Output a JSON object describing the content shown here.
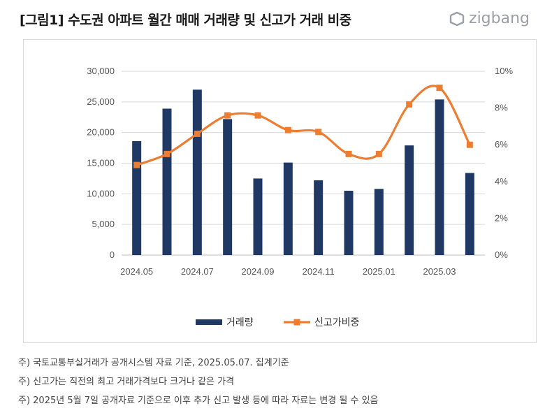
{
  "title": "[그림1] 수도권 아파트 월간 매매 거래량 및 신고가 거래 비중",
  "logo_text": "zigbang",
  "chart_data": {
    "type": "bar+line",
    "categories": [
      "2024.05",
      "2024.06",
      "2024.07",
      "2024.08",
      "2024.09",
      "2024.10",
      "2024.11",
      "2024.12",
      "2025.01",
      "2025.02",
      "2025.03",
      "2025.04"
    ],
    "x_tick_labels": [
      "2024.05",
      "2024.07",
      "2024.09",
      "2024.11",
      "2025.01",
      "2025.03"
    ],
    "series": [
      {
        "name": "거래량",
        "type": "bar",
        "axis": "left",
        "color": "#1f3864",
        "values": [
          18600,
          23900,
          27000,
          22200,
          12500,
          15100,
          12200,
          10500,
          10800,
          17900,
          25400,
          13400
        ]
      },
      {
        "name": "신고가비중",
        "type": "line",
        "axis": "right",
        "color": "#ed7d31",
        "values": [
          4.9,
          5.5,
          6.6,
          7.6,
          7.6,
          6.8,
          6.7,
          5.5,
          5.5,
          8.2,
          9.1,
          6.0
        ]
      }
    ],
    "y_left": {
      "min": 0,
      "max": 30000,
      "ticks": [
        "0",
        "5,000",
        "10,000",
        "15,000",
        "20,000",
        "25,000",
        "30,000"
      ]
    },
    "y_right": {
      "min": 0,
      "max": 10,
      "ticks": [
        "0%",
        "2%",
        "4%",
        "6%",
        "8%",
        "10%"
      ]
    },
    "grid": true,
    "legend_position": "bottom"
  },
  "notes": [
    "주) 국토교통부실거래가 공개시스템 자료 기준, 2025.05.07. 집계기준",
    "주) 신고가는 직전의 최고 거래가격보다 크거나 같은 가격",
    "주) 2025년 5월 7일 공개자료 기준으로 이후 추가 신고 발생 등에 따라 자료는 변경 될 수 있음"
  ]
}
